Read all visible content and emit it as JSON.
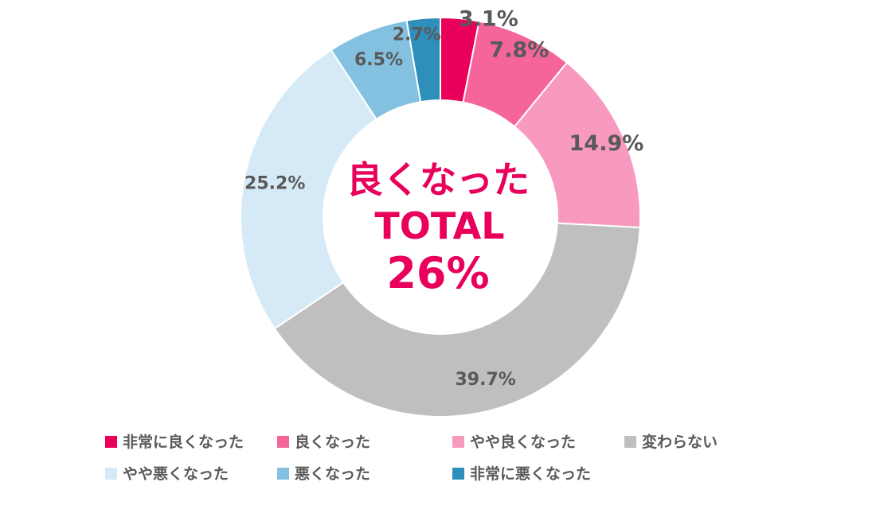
{
  "chart_data": {
    "type": "pie",
    "variant": "donut",
    "slices": [
      {
        "label": "非常に良くなった",
        "value": 3.1,
        "display": "3.1%",
        "color": "#e8005a"
      },
      {
        "label": "良くなった",
        "value": 7.8,
        "display": "7.8%",
        "color": "#f5649a"
      },
      {
        "label": "やや良くなった",
        "value": 14.9,
        "display": "14.9%",
        "color": "#f899bf"
      },
      {
        "label": "変わらない",
        "value": 39.7,
        "display": "39.7%",
        "color": "#bfbfbf"
      },
      {
        "label": "やや悪くなった",
        "value": 25.2,
        "display": "25.2%",
        "color": "#d5eaf6"
      },
      {
        "label": "悪くなった",
        "value": 6.5,
        "display": "6.5%",
        "color": "#84c1e0"
      },
      {
        "label": "非常に悪くなった",
        "value": 2.7,
        "display": "2.7%",
        "color": "#2e8fbb"
      }
    ],
    "center": {
      "line1": "良くなった",
      "line2": "TOTAL",
      "line3": "26%"
    },
    "legend_placement": "bottom"
  },
  "colors": {
    "label_text": "#595959",
    "center_text": "#e8005a"
  }
}
